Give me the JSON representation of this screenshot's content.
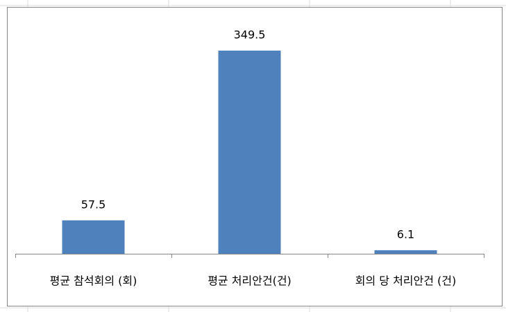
{
  "chart_data": {
    "type": "bar",
    "categories": [
      "평균 참석회의 (회)",
      "평균 처리안건(건)",
      "회의 당 처리안건 (건)"
    ],
    "values": [
      57.5,
      349.5,
      6.1
    ],
    "color": "#4f81bd"
  }
}
